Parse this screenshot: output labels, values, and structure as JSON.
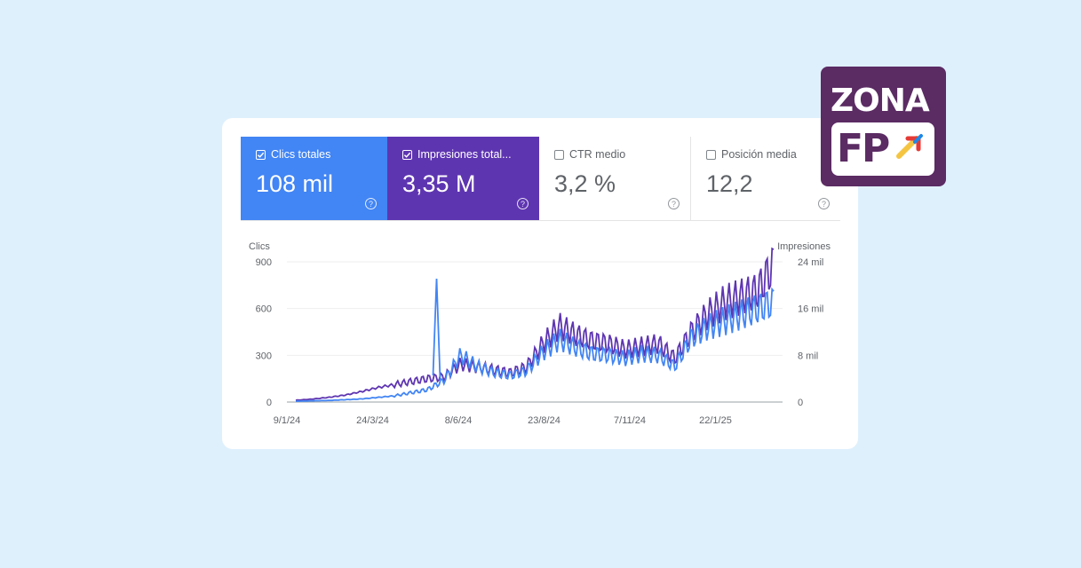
{
  "tiles": [
    {
      "label": "Clics totales",
      "value": "108 mil",
      "checked": true,
      "color": "#4285f4"
    },
    {
      "label": "Impresiones total...",
      "value": "3,35 M",
      "checked": true,
      "color": "#5e35b1"
    },
    {
      "label": "CTR medio",
      "value": "3,2 %",
      "checked": false,
      "color": "#ffffff"
    },
    {
      "label": "Posición media",
      "value": "12,2",
      "checked": false,
      "color": "#ffffff"
    }
  ],
  "help_glyph": "?",
  "logo": {
    "line1": "ZONA",
    "line2": "FP"
  },
  "chart_data": {
    "type": "line",
    "left_axis_title": "Clics",
    "right_axis_title": "Impresiones",
    "left_ticks": [
      "900",
      "600",
      "300",
      "0"
    ],
    "right_ticks": [
      "24 mil",
      "16 mil",
      "8 mil",
      "0"
    ],
    "x_ticks": [
      "9/1/24",
      "24/3/24",
      "8/6/24",
      "23/8/24",
      "7/11/24",
      "22/1/25"
    ],
    "left_range": [
      0,
      900
    ],
    "right_range": [
      0,
      24000
    ],
    "x": [
      "9/1/24",
      "24/1/24",
      "8/2/24",
      "23/2/24",
      "9/3/24",
      "24/3/24",
      "8/4/24",
      "23/4/24",
      "8/5/24",
      "24/5/24",
      "8/6/24",
      "23/6/24",
      "8/7/24",
      "23/7/24",
      "7/8/24",
      "23/8/24",
      "7/9/24",
      "22/9/24",
      "7/10/24",
      "22/10/24",
      "7/11/24",
      "22/11/24",
      "7/12/24",
      "22/12/24",
      "6/1/25",
      "22/1/25",
      "6/2/25",
      "21/2/25",
      "8/3/25",
      "23/3/25"
    ],
    "series": [
      {
        "name": "Clics totales",
        "axis": "left",
        "color": "#4285f4",
        "values": [
          5,
          8,
          10,
          15,
          20,
          30,
          40,
          60,
          80,
          140,
          300,
          230,
          190,
          170,
          200,
          320,
          400,
          350,
          310,
          300,
          280,
          310,
          300,
          230,
          410,
          480,
          520,
          560,
          600,
          640
        ]
      },
      {
        "name": "Impresiones totales",
        "axis": "right",
        "color": "#5e35b1",
        "values": [
          300,
          500,
          800,
          1200,
          1800,
          2500,
          3000,
          3500,
          4000,
          4300,
          6500,
          6000,
          5500,
          5000,
          6000,
          10000,
          13000,
          11500,
          10500,
          10000,
          9000,
          9500,
          10000,
          7500,
          12000,
          15000,
          17000,
          18000,
          19000,
          23500
        ]
      }
    ],
    "grid": true
  }
}
